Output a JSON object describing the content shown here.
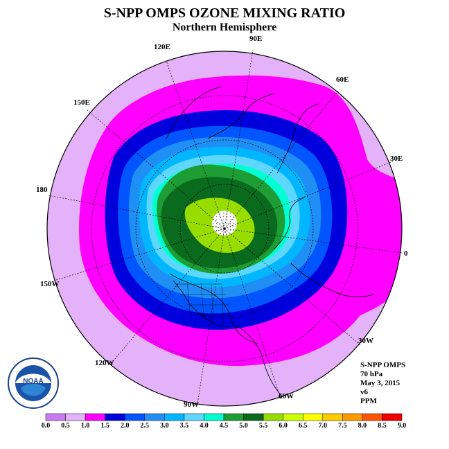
{
  "title": "S-NPP OMPS OZONE MIXING RATIO",
  "subtitle": "Northern Hemisphere",
  "longitude_labels": [
    "90E",
    "60E",
    "30E",
    "0",
    "30W",
    "60W",
    "90W",
    "120W",
    "150W",
    "180",
    "150E",
    "120E"
  ],
  "info": {
    "instrument": "S-NPP OMPS",
    "pressure": "70 hPa",
    "date": "May 3, 2015",
    "version": "v6",
    "units": "PPM"
  },
  "logo": {
    "text": "NOAA",
    "ring_text": "NATIONAL OCEANIC AND ATMOSPHERIC ADMINISTRATION · U.S. DEPARTMENT OF COMMERCE"
  },
  "colorbar": {
    "ticks": [
      "0.0",
      "0.5",
      "1.0",
      "1.5",
      "2.0",
      "2.5",
      "3.0",
      "3.5",
      "4.0",
      "4.5",
      "5.0",
      "5.5",
      "6.0",
      "6.5",
      "7.0",
      "7.5",
      "8.0",
      "8.5",
      "9.0"
    ],
    "colors": [
      "#c77cf0",
      "#e4b2f9",
      "#ff00ff",
      "#0000dd",
      "#0055ff",
      "#1f8ff5",
      "#00b6ff",
      "#5ed7ff",
      "#00ffd2",
      "#1d9d34",
      "#0a6a1e",
      "#99dd00",
      "#ccff00",
      "#ffff00",
      "#ffcc00",
      "#ff9900",
      "#ff5500",
      "#ee0000",
      "#8a5a3a"
    ]
  },
  "chart_data": {
    "type": "polar_contour_map",
    "projection": "north polar stereographic",
    "variable": "ozone mixing ratio",
    "level": "70 hPa",
    "units": "PPM",
    "date": "May 3, 2015",
    "contour_levels": [
      0.0,
      0.5,
      1.0,
      1.5,
      2.0,
      2.5,
      3.0,
      3.5,
      4.0,
      4.5,
      5.0,
      5.5,
      6.0,
      6.5,
      7.0,
      7.5,
      8.0,
      8.5,
      9.0
    ],
    "observed_range": [
      0.5,
      6.0
    ],
    "pole_no_data": true
  }
}
